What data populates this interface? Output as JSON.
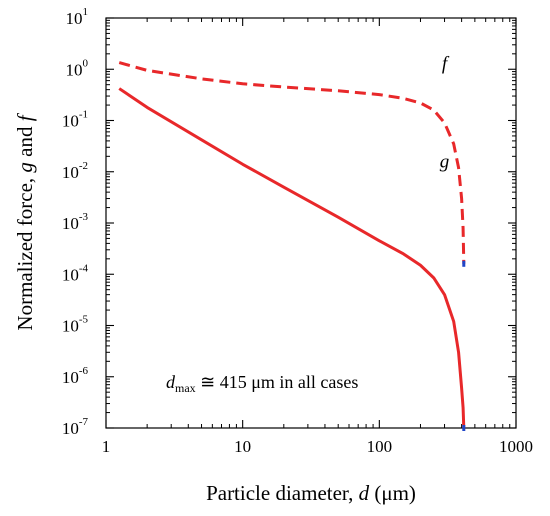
{
  "chart_data": {
    "type": "line",
    "xscale": "log",
    "yscale": "log",
    "xlim": [
      1,
      1000
    ],
    "ylim": [
      1e-07,
      10
    ],
    "xlabel": {
      "prefix": "Particle diameter, ",
      "var": "d",
      "suffix": " (μm)"
    },
    "ylabel": {
      "prefix": "Normalized force, ",
      "var1": "g",
      "middle": " and ",
      "var2": "f"
    },
    "x_ticks": [
      {
        "value": 1,
        "label": "1"
      },
      {
        "value": 10,
        "label": "10"
      },
      {
        "value": 100,
        "label": "100"
      },
      {
        "value": 1000,
        "label": "1000"
      }
    ],
    "y_ticks": [
      {
        "value": 10,
        "base": "10",
        "exp": "1"
      },
      {
        "value": 1,
        "base": "10",
        "exp": "0"
      },
      {
        "value": 0.1,
        "base": "10",
        "exp": "-1"
      },
      {
        "value": 0.01,
        "base": "10",
        "exp": "-2"
      },
      {
        "value": 0.001,
        "base": "10",
        "exp": "-3"
      },
      {
        "value": 0.0001,
        "base": "10",
        "exp": "-4"
      },
      {
        "value": 1e-05,
        "base": "10",
        "exp": "-5"
      },
      {
        "value": 1e-06,
        "base": "10",
        "exp": "-6"
      },
      {
        "value": 1e-07,
        "base": "10",
        "exp": "-7"
      }
    ],
    "grid": false,
    "series": [
      {
        "name": "f",
        "style": "dashed",
        "color": "#e8282a",
        "points": [
          [
            1.25,
            1.35
          ],
          [
            2,
            0.95
          ],
          [
            5,
            0.65
          ],
          [
            10,
            0.52
          ],
          [
            20,
            0.45
          ],
          [
            50,
            0.38
          ],
          [
            100,
            0.32
          ],
          [
            150,
            0.27
          ],
          [
            200,
            0.22
          ],
          [
            250,
            0.16
          ],
          [
            300,
            0.09
          ],
          [
            350,
            0.035
          ],
          [
            380,
            0.012
          ],
          [
            400,
            0.003
          ],
          [
            410,
            0.0008
          ],
          [
            415,
            0.00016
          ]
        ]
      },
      {
        "name": "g",
        "style": "solid",
        "color": "#e8282a",
        "points": [
          [
            1.25,
            0.42
          ],
          [
            2,
            0.18
          ],
          [
            5,
            0.042
          ],
          [
            10,
            0.014
          ],
          [
            20,
            0.005
          ],
          [
            50,
            0.0013
          ],
          [
            100,
            0.00045
          ],
          [
            150,
            0.00025
          ],
          [
            200,
            0.00015
          ],
          [
            250,
            8.5e-05
          ],
          [
            300,
            4e-05
          ],
          [
            350,
            1.2e-05
          ],
          [
            380,
            3e-06
          ],
          [
            400,
            6e-07
          ],
          [
            410,
            2.5e-07
          ],
          [
            415,
            1e-07
          ]
        ]
      }
    ],
    "series_labels": [
      {
        "series": "f",
        "text": "f",
        "x": 300,
        "y": 1.0
      },
      {
        "series": "g",
        "text": "g",
        "x": 300,
        "y": 0.012
      }
    ],
    "annotation": {
      "var": "d",
      "sub": "max",
      "text": " ≅ 415 μm in all cases",
      "x": 105,
      "y": 1.2e-06
    }
  }
}
